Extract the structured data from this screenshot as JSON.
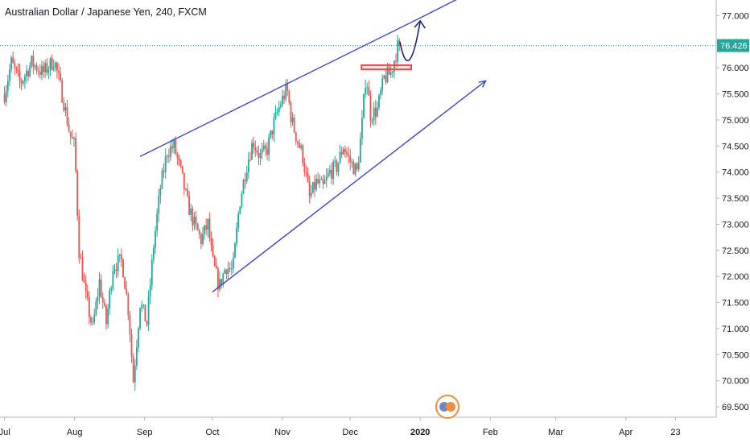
{
  "chart_data": {
    "type": "candlestick",
    "title": "Australian Dollar / Japanese Yen, 240, FXCM",
    "price_label": "76.426",
    "last_price": 76.426,
    "ylim": [
      69.3,
      77.3
    ],
    "y_ticks": [
      "69.500",
      "70.000",
      "70.500",
      "71.000",
      "71.500",
      "72.000",
      "72.500",
      "73.000",
      "73.500",
      "74.000",
      "74.500",
      "75.000",
      "75.500",
      "76.000",
      "76.500",
      "77.000"
    ],
    "x_ticks": [
      {
        "label": "Jul",
        "day": 0,
        "bold": false
      },
      {
        "label": "Aug",
        "day": 31,
        "bold": false
      },
      {
        "label": "Sep",
        "day": 62,
        "bold": false
      },
      {
        "label": "Oct",
        "day": 92,
        "bold": false
      },
      {
        "label": "Nov",
        "day": 123,
        "bold": false
      },
      {
        "label": "Dec",
        "day": 153,
        "bold": false
      },
      {
        "label": "2020",
        "day": 184,
        "bold": true
      },
      {
        "label": "Feb",
        "day": 215,
        "bold": false
      },
      {
        "label": "Mar",
        "day": 244,
        "bold": false
      },
      {
        "label": "Apr",
        "day": 275,
        "bold": false
      },
      {
        "label": "23",
        "day": 297,
        "bold": false
      }
    ],
    "xlim_days": [
      -2,
      315
    ],
    "price_path": [
      [
        0,
        75.5
      ],
      [
        3,
        76.1
      ],
      [
        7,
        75.7
      ],
      [
        12,
        76.1
      ],
      [
        17,
        75.9
      ],
      [
        22,
        76.15
      ],
      [
        26,
        75.4
      ],
      [
        29,
        74.7
      ],
      [
        31,
        74.5
      ],
      [
        33,
        72.5
      ],
      [
        36,
        71.6
      ],
      [
        39,
        71.0
      ],
      [
        42,
        71.9
      ],
      [
        45,
        71.1
      ],
      [
        48,
        72.2
      ],
      [
        52,
        72.3
      ],
      [
        55,
        71.3
      ],
      [
        57,
        70.0
      ],
      [
        60,
        71.5
      ],
      [
        63,
        71.1
      ],
      [
        66,
        72.6
      ],
      [
        69,
        73.7
      ],
      [
        72,
        74.4
      ],
      [
        75,
        74.5
      ],
      [
        78,
        74.0
      ],
      [
        81,
        73.4
      ],
      [
        84,
        73.0
      ],
      [
        87,
        72.7
      ],
      [
        90,
        73.0
      ],
      [
        92,
        72.3
      ],
      [
        95,
        71.8
      ],
      [
        98,
        72.2
      ],
      [
        101,
        72.1
      ],
      [
        104,
        73.4
      ],
      [
        107,
        74.1
      ],
      [
        110,
        74.6
      ],
      [
        113,
        74.3
      ],
      [
        116,
        74.4
      ],
      [
        119,
        74.9
      ],
      [
        122,
        75.3
      ],
      [
        125,
        75.6
      ],
      [
        127,
        75.0
      ],
      [
        129,
        74.7
      ],
      [
        132,
        74.3
      ],
      [
        135,
        73.5
      ],
      [
        138,
        73.8
      ],
      [
        141,
        73.7
      ],
      [
        144,
        74.0
      ],
      [
        147,
        74.1
      ],
      [
        150,
        74.5
      ],
      [
        153,
        74.2
      ],
      [
        156,
        74.0
      ],
      [
        158,
        74.8
      ],
      [
        160,
        75.9
      ],
      [
        162,
        75.1
      ],
      [
        165,
        75.2
      ],
      [
        168,
        75.8
      ],
      [
        171,
        75.9
      ],
      [
        174,
        76.4
      ],
      [
        175,
        76.5
      ]
    ],
    "drawings": {
      "channel_upper": [
        [
          60,
          74.3
        ],
        [
          186,
          77.0
        ]
      ],
      "channel_upper_ext": [
        [
          186,
          77.0
        ],
        [
          211,
          77.55
        ]
      ],
      "channel_lower": [
        [
          92,
          71.7
        ],
        [
          213,
          75.75
        ]
      ],
      "resistance_box": {
        "day_start": 158,
        "day_end": 180,
        "price_top": 76.05,
        "price_bottom": 75.97
      },
      "projection_arrow": [
        [
          175,
          76.5
        ],
        [
          179,
          75.95
        ],
        [
          184,
          76.9
        ]
      ]
    },
    "colors": {
      "up": "#26a69a",
      "down": "#ef5350",
      "drawing": "#3f43d6",
      "projection": "#1a237e",
      "box": "#ff4040",
      "price_line": "#26a69a",
      "axis_text": "#131722"
    }
  }
}
